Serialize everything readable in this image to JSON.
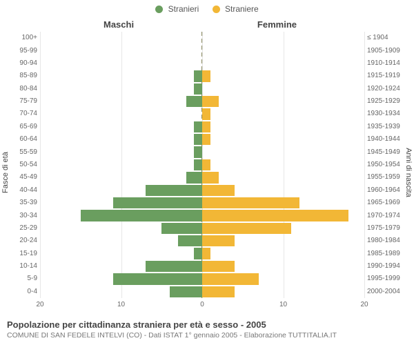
{
  "legend": {
    "male": {
      "label": "Stranieri",
      "color": "#6a9e5f"
    },
    "female": {
      "label": "Straniere",
      "color": "#f2b736"
    }
  },
  "columns": {
    "left": "Maschi",
    "right": "Femmine"
  },
  "axis_titles": {
    "left": "Fasce di età",
    "right": "Anni di nascita"
  },
  "pyramid": {
    "type": "population-pyramid",
    "xlim": 20,
    "xticks_left": [
      20,
      10,
      0
    ],
    "xticks_right": [
      0,
      10,
      20
    ],
    "grid_color": "#e6e6e6",
    "center_color": "#8a8a60",
    "bar_height_ratio": 0.82,
    "background_color": "#ffffff",
    "label_fontsize": 10,
    "tick_fontsize": 10,
    "rows": [
      {
        "age": "100+",
        "birth": "≤ 1904",
        "m": 0,
        "f": 0
      },
      {
        "age": "95-99",
        "birth": "1905-1909",
        "m": 0,
        "f": 0
      },
      {
        "age": "90-94",
        "birth": "1910-1914",
        "m": 0,
        "f": 0
      },
      {
        "age": "85-89",
        "birth": "1915-1919",
        "m": 1,
        "f": 1
      },
      {
        "age": "80-84",
        "birth": "1920-1924",
        "m": 1,
        "f": 0
      },
      {
        "age": "75-79",
        "birth": "1925-1929",
        "m": 2,
        "f": 2
      },
      {
        "age": "70-74",
        "birth": "1930-1934",
        "m": 0,
        "f": 1
      },
      {
        "age": "65-69",
        "birth": "1935-1939",
        "m": 1,
        "f": 1
      },
      {
        "age": "60-64",
        "birth": "1940-1944",
        "m": 1,
        "f": 1
      },
      {
        "age": "55-59",
        "birth": "1945-1949",
        "m": 1,
        "f": 0
      },
      {
        "age": "50-54",
        "birth": "1950-1954",
        "m": 1,
        "f": 1
      },
      {
        "age": "45-49",
        "birth": "1955-1959",
        "m": 2,
        "f": 2
      },
      {
        "age": "40-44",
        "birth": "1960-1964",
        "m": 7,
        "f": 4
      },
      {
        "age": "35-39",
        "birth": "1965-1969",
        "m": 11,
        "f": 12
      },
      {
        "age": "30-34",
        "birth": "1970-1974",
        "m": 15,
        "f": 18
      },
      {
        "age": "25-29",
        "birth": "1975-1979",
        "m": 5,
        "f": 11
      },
      {
        "age": "20-24",
        "birth": "1980-1984",
        "m": 3,
        "f": 4
      },
      {
        "age": "15-19",
        "birth": "1985-1989",
        "m": 1,
        "f": 1
      },
      {
        "age": "10-14",
        "birth": "1990-1994",
        "m": 7,
        "f": 4
      },
      {
        "age": "5-9",
        "birth": "1995-1999",
        "m": 11,
        "f": 7
      },
      {
        "age": "0-4",
        "birth": "2000-2004",
        "m": 4,
        "f": 4
      }
    ]
  },
  "footer": {
    "title": "Popolazione per cittadinanza straniera per età e sesso - 2005",
    "subtitle": "COMUNE DI SAN FEDELE INTELVI (CO) - Dati ISTAT 1° gennaio 2005 - Elaborazione TUTTITALIA.IT"
  }
}
